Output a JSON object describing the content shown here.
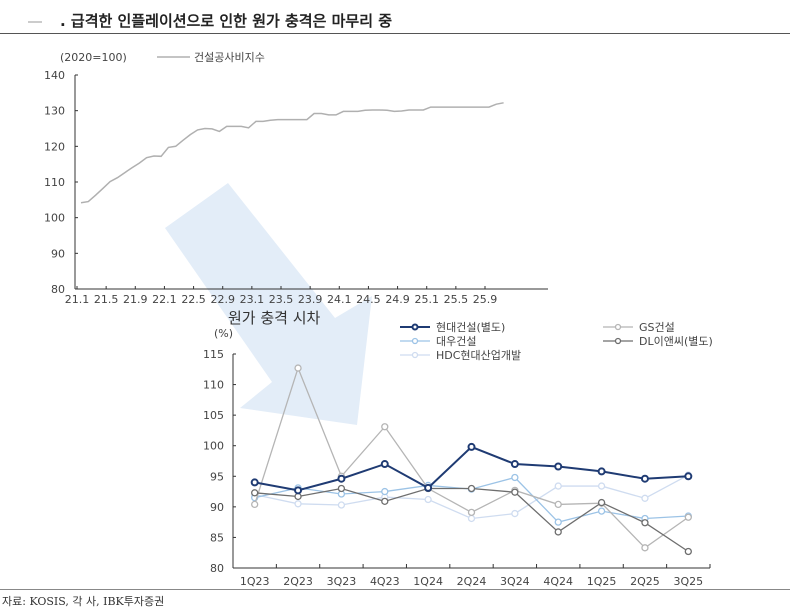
{
  "header": {
    "title": ". 급격한 인플레이션으로 인한 원가 충격은 마무리 중"
  },
  "footer": {
    "source": "자료: KOSIS, 각 사, IBK투자증권"
  },
  "chart_data": [
    {
      "type": "line",
      "unit_label": "(2020=100)",
      "ylim": [
        80,
        140
      ],
      "yticks": [
        80,
        90,
        100,
        110,
        120,
        130,
        140
      ],
      "xtick_labels": [
        "21.1",
        "21.5",
        "21.9",
        "22.1",
        "22.5",
        "22.9",
        "23.1",
        "23.5",
        "23.9",
        "24.1",
        "24.5",
        "24.9",
        "25.1",
        "25.5",
        "25.9"
      ],
      "grid": false,
      "legend": "top",
      "series": [
        {
          "name": "건설공사비지수",
          "color": "#b0b0b0",
          "start": "21.1",
          "frequency": "monthly",
          "values": [
            104.2,
            104.5,
            106.3,
            108.2,
            110.1,
            111.2,
            112.6,
            114.0,
            115.3,
            116.8,
            117.3,
            117.2,
            119.7,
            120.0,
            121.7,
            123.3,
            124.6,
            125.0,
            124.9,
            124.2,
            125.6,
            125.6,
            125.6,
            125.2,
            127.0,
            127.0,
            127.3,
            127.5,
            127.5,
            127.5,
            127.5,
            127.5,
            129.2,
            129.2,
            128.8,
            128.8,
            129.8,
            129.8,
            129.8,
            130.1,
            130.2,
            130.2,
            130.1,
            129.8,
            129.9,
            130.2,
            130.2,
            130.2,
            131.0,
            131.0,
            131.0,
            131.0,
            131.0,
            131.0,
            131.0,
            131.0,
            131.0,
            131.8,
            132.2
          ]
        }
      ]
    },
    {
      "type": "line",
      "title": "원가 충격 시차",
      "unit_label": "(%)",
      "ylim": [
        80,
        115
      ],
      "yticks": [
        80,
        85,
        90,
        95,
        100,
        105,
        110,
        115
      ],
      "categories": [
        "1Q23",
        "2Q23",
        "3Q23",
        "4Q23",
        "1Q24",
        "2Q24",
        "3Q24",
        "4Q24",
        "1Q25",
        "2Q25",
        "3Q25"
      ],
      "grid": false,
      "legend": "top-right",
      "series": [
        {
          "name": "현대건설(별도)",
          "color": "#1f3b73",
          "values": [
            94.0,
            92.7,
            94.6,
            97.0,
            93.1,
            99.8,
            97.0,
            96.6,
            95.8,
            94.6,
            95.0
          ]
        },
        {
          "name": "GS건설",
          "color": "#b5b5b5",
          "values": [
            90.4,
            112.7,
            95.0,
            103.1,
            93.0,
            89.1,
            92.7,
            90.4,
            90.6,
            83.3,
            88.3
          ]
        },
        {
          "name": "대우건설",
          "color": "#9cc3e6",
          "values": [
            91.5,
            93.1,
            92.1,
            92.5,
            93.5,
            92.9,
            94.8,
            87.5,
            89.3,
            88.1,
            88.5
          ]
        },
        {
          "name": "DL이앤씨(별도)",
          "color": "#6e6e6e",
          "values": [
            92.3,
            91.7,
            93.0,
            90.9,
            93.0,
            93.0,
            92.4,
            85.9,
            90.7,
            87.4,
            82.7
          ]
        },
        {
          "name": "HDC현대산업개발",
          "color": "#cfdcf0",
          "values": [
            92.0,
            90.5,
            90.3,
            91.6,
            91.2,
            88.1,
            88.9,
            93.4,
            93.4,
            91.4,
            95.2
          ]
        }
      ]
    }
  ]
}
